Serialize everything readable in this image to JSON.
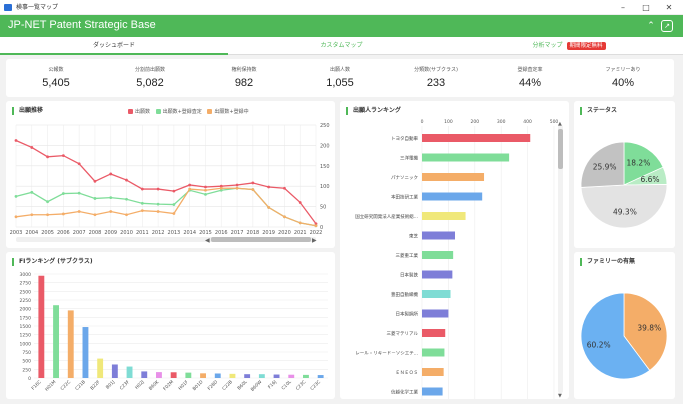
{
  "window": {
    "title": "検事一覧マップ"
  },
  "header": {
    "title": "JP-NET Patent Strategic Base"
  },
  "tabs": [
    {
      "label": "ダッシュボード"
    },
    {
      "label": "カスタムマップ"
    },
    {
      "label": "分析マップ",
      "badge": "期間限定無料"
    }
  ],
  "kpis": [
    {
      "label": "公報数",
      "value": "5,405"
    },
    {
      "label": "分割前出願数",
      "value": "5,082"
    },
    {
      "label": "権利保持数",
      "value": "982"
    },
    {
      "label": "出願人数",
      "value": "1,055"
    },
    {
      "label": "分類数(サブクラス)",
      "value": "233"
    },
    {
      "label": "登録査定率",
      "value": "44%"
    },
    {
      "label": "ファミリーあり",
      "value": "40%"
    }
  ],
  "trend": {
    "title": "出願推移",
    "legend": [
      "出願数",
      "出願数+登録査定",
      "出願数+登録中"
    ]
  },
  "fi": {
    "title": "FIランキング (サブクラス)"
  },
  "applicants": {
    "title": "出願人ランキング"
  },
  "status": {
    "title": "ステータス"
  },
  "family": {
    "title": "ファミリーの有無"
  },
  "colors": {
    "red": "#ea5a67",
    "green": "#7fdd99",
    "orange": "#f4ad68",
    "accent": "#4fb858",
    "badge": "#e53935"
  },
  "chart_data": [
    {
      "type": "line",
      "x": [
        "2003",
        "2004",
        "2005",
        "2006",
        "2007",
        "2008",
        "2009",
        "2010",
        "2011",
        "2012",
        "2013",
        "2014",
        "2015",
        "2016",
        "2017",
        "2018",
        "2019",
        "2020",
        "2021",
        "2022"
      ],
      "ylim": [
        0,
        250
      ],
      "yticks": [
        0,
        50,
        100,
        150,
        200,
        250
      ],
      "series": [
        {
          "name": "出願数",
          "color": "#ea5a67",
          "values": [
            212,
            195,
            172,
            175,
            155,
            112,
            130,
            115,
            93,
            93,
            88,
            103,
            98,
            100,
            103,
            108,
            98,
            95,
            60,
            8
          ]
        },
        {
          "name": "出願数+登録査定",
          "color": "#7fdd99",
          "values": [
            75,
            85,
            62,
            82,
            83,
            70,
            72,
            68,
            58,
            56,
            55,
            90,
            80,
            90,
            95,
            92,
            48,
            25,
            10,
            3
          ]
        },
        {
          "name": "出願数+登録中",
          "color": "#f4ad68",
          "values": [
            25,
            30,
            30,
            32,
            38,
            30,
            38,
            30,
            40,
            38,
            33,
            93,
            90,
            95,
            95,
            92,
            48,
            25,
            10,
            3
          ]
        }
      ]
    },
    {
      "type": "bar",
      "categories": [
        "F16C",
        "H01M",
        "C22C",
        "C21B",
        "B22F",
        "B01J",
        "C23F",
        "H02J",
        "B60K",
        "F02M",
        "H01F",
        "B01D",
        "F28D",
        "C22B",
        "B60L",
        "B60W",
        "F16J",
        "C10L",
        "C23C",
        "C23C"
      ],
      "values": [
        2950,
        2100,
        1950,
        1470,
        560,
        390,
        330,
        190,
        170,
        165,
        155,
        135,
        130,
        120,
        110,
        110,
        100,
        95,
        90,
        85
      ],
      "colors": [
        "#ea5a67",
        "#7fdd99",
        "#f4ad68",
        "#6ba7ea",
        "#f0e87a",
        "#7e7ed8",
        "#7fdcd4",
        "#7e7ed8",
        "#e890e8",
        "#ea5a67",
        "#7fdd99",
        "#f4ad68",
        "#6ba7ea",
        "#f0e87a",
        "#7e7ed8",
        "#7fdcd4",
        "#7e7ed8",
        "#e890e8",
        "#7fdd99",
        "#6ba7ea"
      ],
      "ylim": [
        0,
        3000
      ],
      "yticks": [
        0,
        250,
        500,
        750,
        1000,
        1250,
        1500,
        1750,
        2000,
        2250,
        2500,
        2750,
        3000
      ]
    },
    {
      "type": "bar",
      "orientation": "horizontal",
      "categories": [
        "トヨタ自動車",
        "三洋電機",
        "パナソニック",
        "本田技研工業",
        "国立研究開発法人産業技術総...",
        "東芝",
        "三菱重工業",
        "日本製鉄",
        "豊田自動織機",
        "日本製鋼所",
        "三菱マテリアル",
        "レール・リキード－ソシエテ...",
        "ＥＮＥＯＳ",
        "信越化学工業",
        "神戸製鋼所"
      ],
      "values": [
        410,
        330,
        235,
        228,
        165,
        125,
        118,
        115,
        108,
        100,
        88,
        85,
        82,
        78,
        72
      ],
      "colors": [
        "#ea5a67",
        "#7fdd99",
        "#f4ad68",
        "#6ba7ea",
        "#f0e87a",
        "#7e7ed8",
        "#7fdd99",
        "#7e7ed8",
        "#7fdcd4",
        "#7e7ed8",
        "#ea5a67",
        "#7fdd99",
        "#f4ad68",
        "#6ba7ea",
        "#f0e87a"
      ],
      "xlim": [
        0,
        500
      ],
      "xticks": [
        0,
        100,
        200,
        300,
        400,
        500
      ]
    },
    {
      "type": "pie",
      "labels": [
        "18.2%",
        "6.6%",
        "49.3%",
        "25.9%"
      ],
      "values": [
        18.2,
        6.6,
        49.3,
        25.9
      ],
      "colors": [
        "#7fdd99",
        "#b9ecc5",
        "#e3e3e3",
        "#c2c2c2"
      ]
    },
    {
      "type": "pie",
      "labels": [
        "39.8%",
        "60.2%"
      ],
      "values": [
        39.8,
        60.2
      ],
      "colors": [
        "#f4ad68",
        "#6bb1f2"
      ]
    }
  ]
}
